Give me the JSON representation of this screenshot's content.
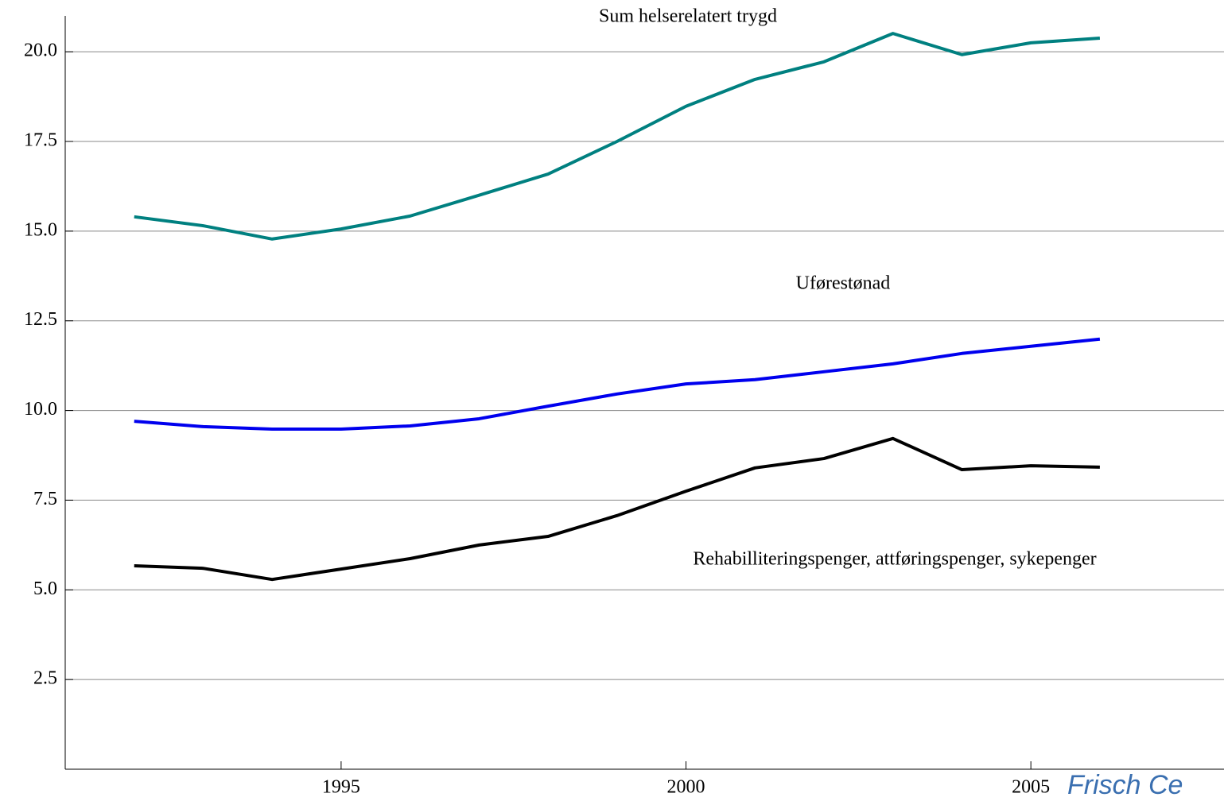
{
  "chart_data": {
    "type": "line",
    "x": [
      1992,
      1993,
      1994,
      1995,
      1996,
      1997,
      1998,
      1999,
      2000,
      2001,
      2002,
      2003,
      2004,
      2005,
      2006
    ],
    "series": [
      {
        "name": "Sum helserelatert trygd",
        "color": "#008080",
        "values": [
          15.4,
          15.15,
          14.78,
          15.06,
          15.42,
          16.0,
          16.59,
          17.5,
          18.48,
          19.23,
          19.72,
          20.51,
          19.92,
          20.25,
          20.38
        ]
      },
      {
        "name": "Uførestønad",
        "color": "#0000ee",
        "values": [
          9.7,
          9.55,
          9.48,
          9.48,
          9.57,
          9.77,
          10.12,
          10.46,
          10.74,
          10.86,
          11.08,
          11.3,
          11.59,
          11.79,
          11.99
        ]
      },
      {
        "name": "Rehabilliteringspenger, attføringspenger, sykepenger",
        "color": "#000000",
        "values": [
          5.67,
          5.6,
          5.29,
          5.58,
          5.87,
          6.25,
          6.49,
          7.07,
          7.75,
          8.4,
          8.66,
          9.22,
          8.35,
          8.46,
          8.42
        ]
      }
    ],
    "xlim": [
      1991,
      2007.8
    ],
    "xticks": [
      1995,
      2000,
      2005
    ],
    "ylim": [
      0,
      21
    ],
    "yticks": [
      {
        "value": 2.5,
        "label": "2.5"
      },
      {
        "value": 5,
        "label": "5.0"
      },
      {
        "value": 7.5,
        "label": "7.5"
      },
      {
        "value": 10,
        "label": "10.0"
      },
      {
        "value": 12.5,
        "label": "12.5"
      },
      {
        "value": 15,
        "label": "15.0"
      },
      {
        "value": 17.5,
        "label": "17.5"
      },
      {
        "value": 20,
        "label": "20.0"
      }
    ],
    "grid": true,
    "watermark": "Frisch Ce"
  }
}
